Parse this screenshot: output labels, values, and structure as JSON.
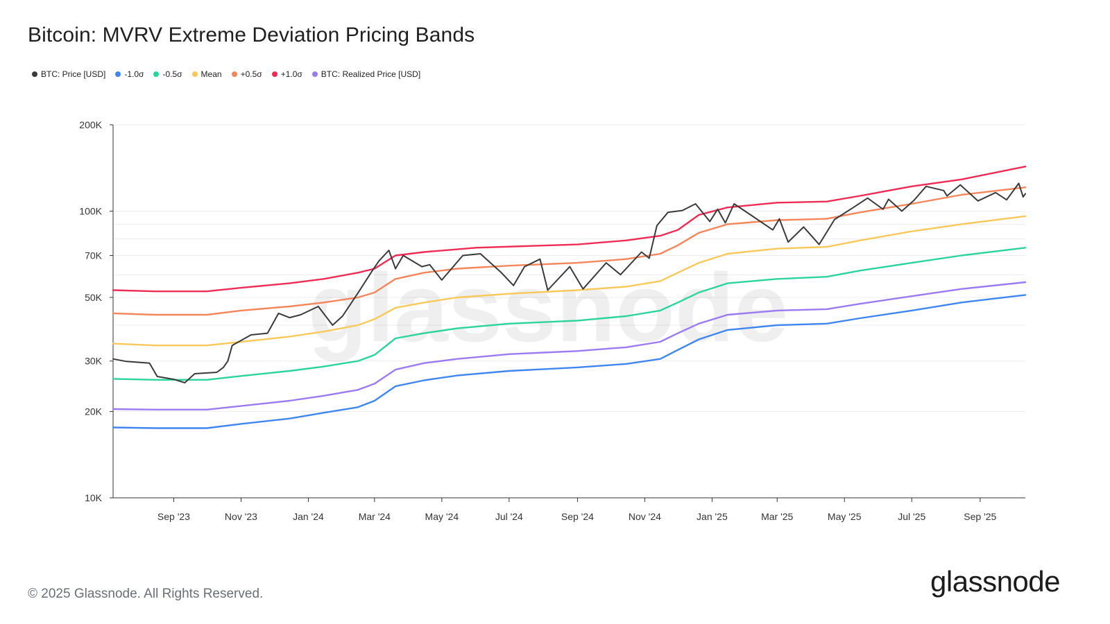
{
  "title": "Bitcoin: MVRV Extreme Deviation Pricing Bands",
  "legend": [
    {
      "label": "BTC: Price [USD]",
      "color": "#3a3a3a"
    },
    {
      "label": "-1.0σ",
      "color": "#3f86f0"
    },
    {
      "label": "-0.5σ",
      "color": "#2bd49a"
    },
    {
      "label": "Mean",
      "color": "#f8c95a"
    },
    {
      "label": "+0.5σ",
      "color": "#f5855a"
    },
    {
      "label": "+1.0σ",
      "color": "#ee2c55"
    },
    {
      "label": "BTC: Realized Price [USD]",
      "color": "#9c7af2"
    }
  ],
  "footer": "© 2025 Glassnode. All Rights Reserved.",
  "brand": "glassnode",
  "watermark": "glassnode",
  "chart_data": {
    "type": "line",
    "title": "Bitcoin: MVRV Extreme Deviation Pricing Bands",
    "y_scale": "log",
    "ylim": [
      10000,
      200000
    ],
    "y_ticks": [
      10000,
      20000,
      30000,
      50000,
      70000,
      100000,
      200000
    ],
    "y_tick_labels": [
      "10K",
      "20K",
      "30K",
      "50K",
      "70K",
      "100K",
      "200K"
    ],
    "xlim": [
      "2023-07-08",
      "2025-10-12"
    ],
    "x_ticks": [
      "2023-09-01",
      "2023-11-01",
      "2024-01-01",
      "2024-03-01",
      "2024-05-01",
      "2024-07-01",
      "2024-09-01",
      "2024-11-01",
      "2025-01-01",
      "2025-03-01",
      "2025-05-01",
      "2025-07-01",
      "2025-09-01"
    ],
    "x_tick_labels": [
      "Sep '23",
      "Nov '23",
      "Jan '24",
      "Mar '24",
      "May '24",
      "Jul '24",
      "Sep '24",
      "Nov '24",
      "Jan '25",
      "Mar '25",
      "May '25",
      "Jul '25",
      "Sep '25"
    ],
    "grid": true,
    "legend_position": "top-left",
    "series": [
      {
        "name": "+1.0σ",
        "color": "#ee2c55",
        "points": [
          [
            "2023-07-08",
            53000
          ],
          [
            "2023-08-15",
            52500
          ],
          [
            "2023-10-01",
            52500
          ],
          [
            "2023-11-01",
            54000
          ],
          [
            "2023-12-15",
            56000
          ],
          [
            "2024-01-15",
            58000
          ],
          [
            "2024-02-15",
            61000
          ],
          [
            "2024-03-01",
            63000
          ],
          [
            "2024-03-20",
            70000
          ],
          [
            "2024-04-15",
            72000
          ],
          [
            "2024-06-01",
            74500
          ],
          [
            "2024-07-15",
            75500
          ],
          [
            "2024-09-01",
            76500
          ],
          [
            "2024-10-15",
            79000
          ],
          [
            "2024-11-15",
            82000
          ],
          [
            "2024-12-01",
            86000
          ],
          [
            "2024-12-20",
            97000
          ],
          [
            "2025-01-15",
            103000
          ],
          [
            "2025-03-01",
            107000
          ],
          [
            "2025-04-15",
            108000
          ],
          [
            "2025-05-15",
            113000
          ],
          [
            "2025-07-01",
            122000
          ],
          [
            "2025-08-15",
            129000
          ],
          [
            "2025-10-12",
            143000
          ]
        ]
      },
      {
        "name": "+0.5σ",
        "color": "#f5855a",
        "points": [
          [
            "2023-07-08",
            44000
          ],
          [
            "2023-08-15",
            43500
          ],
          [
            "2023-10-01",
            43500
          ],
          [
            "2023-11-01",
            45000
          ],
          [
            "2023-12-15",
            46500
          ],
          [
            "2024-01-15",
            48000
          ],
          [
            "2024-02-15",
            50000
          ],
          [
            "2024-03-01",
            52000
          ],
          [
            "2024-03-20",
            58000
          ],
          [
            "2024-04-15",
            61000
          ],
          [
            "2024-05-15",
            63000
          ],
          [
            "2024-07-01",
            64500
          ],
          [
            "2024-09-01",
            66000
          ],
          [
            "2024-10-15",
            68000
          ],
          [
            "2024-11-15",
            71000
          ],
          [
            "2024-12-01",
            76000
          ],
          [
            "2024-12-20",
            84000
          ],
          [
            "2025-01-15",
            90000
          ],
          [
            "2025-03-01",
            93000
          ],
          [
            "2025-04-15",
            94000
          ],
          [
            "2025-05-15",
            99000
          ],
          [
            "2025-07-01",
            106000
          ],
          [
            "2025-08-15",
            114000
          ],
          [
            "2025-10-12",
            121000
          ]
        ]
      },
      {
        "name": "Mean",
        "color": "#f8c95a",
        "points": [
          [
            "2023-07-08",
            34500
          ],
          [
            "2023-08-15",
            34000
          ],
          [
            "2023-10-01",
            34000
          ],
          [
            "2023-11-01",
            35000
          ],
          [
            "2023-12-15",
            36500
          ],
          [
            "2024-01-15",
            38000
          ],
          [
            "2024-02-15",
            40000
          ],
          [
            "2024-03-01",
            42000
          ],
          [
            "2024-03-20",
            46000
          ],
          [
            "2024-04-15",
            48000
          ],
          [
            "2024-05-15",
            50000
          ],
          [
            "2024-07-01",
            51500
          ],
          [
            "2024-09-01",
            53000
          ],
          [
            "2024-10-15",
            54500
          ],
          [
            "2024-11-15",
            57000
          ],
          [
            "2024-12-01",
            61000
          ],
          [
            "2024-12-20",
            66000
          ],
          [
            "2025-01-15",
            71000
          ],
          [
            "2025-03-01",
            74000
          ],
          [
            "2025-04-15",
            75000
          ],
          [
            "2025-05-15",
            79000
          ],
          [
            "2025-07-01",
            85000
          ],
          [
            "2025-08-15",
            90000
          ],
          [
            "2025-10-12",
            96000
          ]
        ]
      },
      {
        "name": "-0.5σ",
        "color": "#2bd49a",
        "points": [
          [
            "2023-07-08",
            26000
          ],
          [
            "2023-08-15",
            25800
          ],
          [
            "2023-10-01",
            25800
          ],
          [
            "2023-11-01",
            26600
          ],
          [
            "2023-12-15",
            27700
          ],
          [
            "2024-01-15",
            28700
          ],
          [
            "2024-02-15",
            30000
          ],
          [
            "2024-03-01",
            31500
          ],
          [
            "2024-03-20",
            36000
          ],
          [
            "2024-04-15",
            37500
          ],
          [
            "2024-05-15",
            39000
          ],
          [
            "2024-07-01",
            40500
          ],
          [
            "2024-09-01",
            41500
          ],
          [
            "2024-10-15",
            43000
          ],
          [
            "2024-11-15",
            45000
          ],
          [
            "2024-12-01",
            48000
          ],
          [
            "2024-12-20",
            52000
          ],
          [
            "2025-01-15",
            56000
          ],
          [
            "2025-03-01",
            58000
          ],
          [
            "2025-04-15",
            59000
          ],
          [
            "2025-05-15",
            62000
          ],
          [
            "2025-07-01",
            66000
          ],
          [
            "2025-08-15",
            70000
          ],
          [
            "2025-10-12",
            74500
          ]
        ]
      },
      {
        "name": "BTC: Realized Price [USD]",
        "color": "#9c7af2",
        "points": [
          [
            "2023-07-08",
            20400
          ],
          [
            "2023-08-15",
            20300
          ],
          [
            "2023-10-01",
            20300
          ],
          [
            "2023-11-01",
            20900
          ],
          [
            "2023-12-15",
            21800
          ],
          [
            "2024-01-15",
            22700
          ],
          [
            "2024-02-15",
            23800
          ],
          [
            "2024-03-01",
            25000
          ],
          [
            "2024-03-20",
            28000
          ],
          [
            "2024-04-15",
            29500
          ],
          [
            "2024-05-15",
            30500
          ],
          [
            "2024-07-01",
            31700
          ],
          [
            "2024-09-01",
            32500
          ],
          [
            "2024-10-15",
            33500
          ],
          [
            "2024-11-15",
            35000
          ],
          [
            "2024-12-01",
            37500
          ],
          [
            "2024-12-20",
            40500
          ],
          [
            "2025-01-15",
            43500
          ],
          [
            "2025-03-01",
            45000
          ],
          [
            "2025-04-15",
            45500
          ],
          [
            "2025-05-15",
            47500
          ],
          [
            "2025-07-01",
            50500
          ],
          [
            "2025-08-15",
            53500
          ],
          [
            "2025-10-12",
            56500
          ]
        ]
      },
      {
        "name": "-1.0σ",
        "color": "#3f86f0",
        "points": [
          [
            "2023-07-08",
            17600
          ],
          [
            "2023-08-15",
            17500
          ],
          [
            "2023-10-01",
            17500
          ],
          [
            "2023-11-01",
            18100
          ],
          [
            "2023-12-15",
            18900
          ],
          [
            "2024-01-15",
            19800
          ],
          [
            "2024-02-15",
            20700
          ],
          [
            "2024-03-01",
            21800
          ],
          [
            "2024-03-20",
            24500
          ],
          [
            "2024-04-15",
            25700
          ],
          [
            "2024-05-15",
            26700
          ],
          [
            "2024-07-01",
            27700
          ],
          [
            "2024-09-01",
            28500
          ],
          [
            "2024-10-15",
            29300
          ],
          [
            "2024-11-15",
            30500
          ],
          [
            "2024-12-01",
            32800
          ],
          [
            "2024-12-20",
            35700
          ],
          [
            "2025-01-15",
            38500
          ],
          [
            "2025-03-01",
            40000
          ],
          [
            "2025-04-15",
            40500
          ],
          [
            "2025-05-15",
            42300
          ],
          [
            "2025-07-01",
            45000
          ],
          [
            "2025-08-15",
            48000
          ],
          [
            "2025-10-12",
            51000
          ]
        ]
      },
      {
        "name": "BTC: Price [USD]",
        "color": "#3a3a3a",
        "points": [
          [
            "2023-07-08",
            30500
          ],
          [
            "2023-07-20",
            29900
          ],
          [
            "2023-08-10",
            29500
          ],
          [
            "2023-08-17",
            26500
          ],
          [
            "2023-09-01",
            25900
          ],
          [
            "2023-09-11",
            25200
          ],
          [
            "2023-09-20",
            27100
          ],
          [
            "2023-10-10",
            27400
          ],
          [
            "2023-10-16",
            28500
          ],
          [
            "2023-10-20",
            30000
          ],
          [
            "2023-10-24",
            34000
          ],
          [
            "2023-11-10",
            37000
          ],
          [
            "2023-11-25",
            37500
          ],
          [
            "2023-12-05",
            44000
          ],
          [
            "2023-12-15",
            42500
          ],
          [
            "2023-12-25",
            43500
          ],
          [
            "2024-01-10",
            46500
          ],
          [
            "2024-01-23",
            40000
          ],
          [
            "2024-02-01",
            43000
          ],
          [
            "2024-02-15",
            51800
          ],
          [
            "2024-02-28",
            62000
          ],
          [
            "2024-03-05",
            67000
          ],
          [
            "2024-03-14",
            73000
          ],
          [
            "2024-03-20",
            63000
          ],
          [
            "2024-03-27",
            70000
          ],
          [
            "2024-04-13",
            64000
          ],
          [
            "2024-04-20",
            65000
          ],
          [
            "2024-05-01",
            57500
          ],
          [
            "2024-05-20",
            70000
          ],
          [
            "2024-06-05",
            71000
          ],
          [
            "2024-06-24",
            61000
          ],
          [
            "2024-07-05",
            55000
          ],
          [
            "2024-07-15",
            64000
          ],
          [
            "2024-07-29",
            68000
          ],
          [
            "2024-08-05",
            53000
          ],
          [
            "2024-08-25",
            64000
          ],
          [
            "2024-09-06",
            53500
          ],
          [
            "2024-09-27",
            66000
          ],
          [
            "2024-10-10",
            60000
          ],
          [
            "2024-10-29",
            72000
          ],
          [
            "2024-11-05",
            68500
          ],
          [
            "2024-11-12",
            89000
          ],
          [
            "2024-11-22",
            99000
          ],
          [
            "2024-12-05",
            100500
          ],
          [
            "2024-12-17",
            106000
          ],
          [
            "2024-12-30",
            92000
          ],
          [
            "2025-01-06",
            101500
          ],
          [
            "2025-01-13",
            91000
          ],
          [
            "2025-01-21",
            106000
          ],
          [
            "2025-02-05",
            97000
          ],
          [
            "2025-02-25",
            86000
          ],
          [
            "2025-03-03",
            94000
          ],
          [
            "2025-03-11",
            78000
          ],
          [
            "2025-03-25",
            88000
          ],
          [
            "2025-04-08",
            76500
          ],
          [
            "2025-04-22",
            93500
          ],
          [
            "2025-05-10",
            103500
          ],
          [
            "2025-05-22",
            111000
          ],
          [
            "2025-06-05",
            101500
          ],
          [
            "2025-06-10",
            110000
          ],
          [
            "2025-06-22",
            100000
          ],
          [
            "2025-07-03",
            109000
          ],
          [
            "2025-07-14",
            122000
          ],
          [
            "2025-07-30",
            118000
          ],
          [
            "2025-08-02",
            113000
          ],
          [
            "2025-08-14",
            123500
          ],
          [
            "2025-08-30",
            108500
          ],
          [
            "2025-09-15",
            116000
          ],
          [
            "2025-09-25",
            109500
          ],
          [
            "2025-10-06",
            125000
          ],
          [
            "2025-10-10",
            112000
          ],
          [
            "2025-10-12",
            115000
          ]
        ]
      }
    ]
  }
}
